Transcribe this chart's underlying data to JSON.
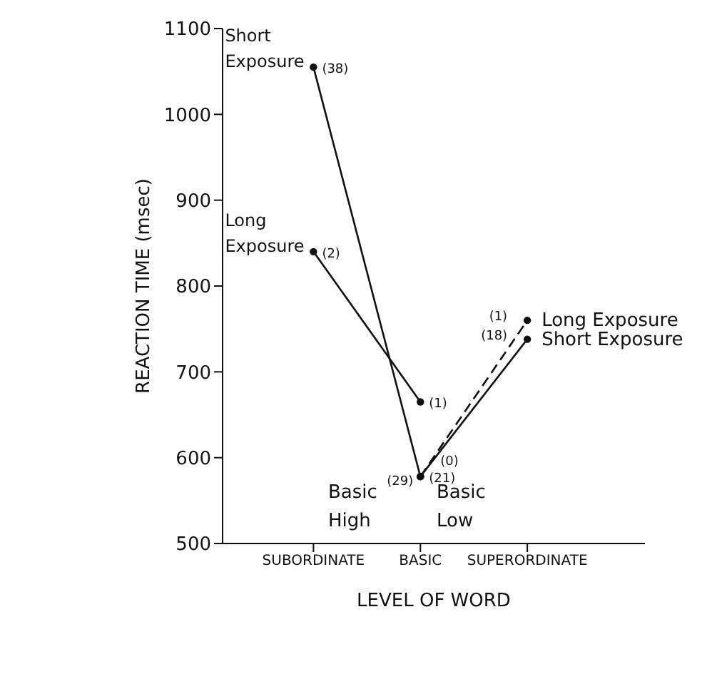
{
  "chart_data": {
    "type": "line",
    "xlabel": "LEVEL OF WORD",
    "ylabel": "REACTION TIME (msec)",
    "categories": [
      "SUBORDINATE",
      "BASIC",
      "SUPERORDINATE"
    ],
    "series": [
      {
        "name": "Short Exposure",
        "color": "#111111",
        "line_style": "solid",
        "values": [
          1055,
          578,
          null
        ]
      },
      {
        "name": "Long Exposure",
        "color": "#111111",
        "line_style": "solid",
        "values": [
          840,
          665,
          null
        ]
      },
      {
        "name": "Long Exposure",
        "color": "#111111",
        "line_style": "dashed",
        "values": [
          null,
          578,
          760
        ]
      },
      {
        "name": "Short Exposure",
        "color": "#111111",
        "line_style": "solid",
        "values": [
          null,
          578,
          738
        ]
      }
    ],
    "ylim": [
      500,
      1100
    ],
    "yticks": [
      500,
      600,
      700,
      800,
      900,
      1000,
      1100
    ],
    "grid": false,
    "legend": false,
    "marker": "circle",
    "annotations": [
      {
        "text": "(38)",
        "x": "SUBORDINATE",
        "y": 1055
      },
      {
        "text": "(2)",
        "x": "SUBORDINATE",
        "y": 840
      },
      {
        "text": "(1)",
        "x": "BASIC",
        "y": 665
      },
      {
        "text": "(29)",
        "x": "BASIC",
        "y": 578
      },
      {
        "text": "(21)",
        "x": "BASIC",
        "y": 578
      },
      {
        "text": "(0)",
        "x": "BASIC",
        "y": 578
      },
      {
        "text": "(1)",
        "x": "SUPERORDINATE",
        "y": 760
      },
      {
        "text": "(18)",
        "x": "SUPERORDINATE",
        "y": 738
      },
      "Basic High",
      "Basic Low"
    ]
  }
}
